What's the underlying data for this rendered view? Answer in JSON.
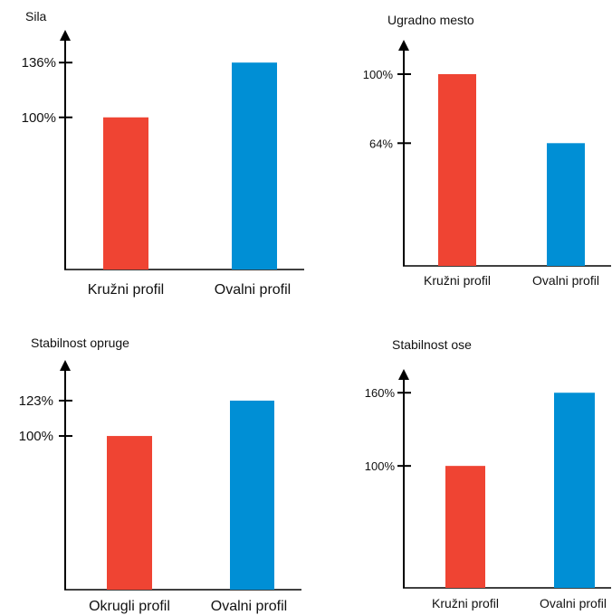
{
  "chart_data": [
    {
      "type": "bar",
      "title": "Sila",
      "categories": [
        "Kružni profil",
        "Ovalni profil"
      ],
      "values": [
        100,
        136
      ],
      "value_ticks": [
        100,
        136
      ],
      "tick_suffix": "%",
      "colors": [
        "#ef4433",
        "#008fd5"
      ],
      "ylim": [
        0,
        170
      ]
    },
    {
      "type": "bar",
      "title": "Ugradno mesto",
      "categories": [
        "Kružni profil",
        "Ovalni profil"
      ],
      "values": [
        100,
        64
      ],
      "value_ticks": [
        100,
        64
      ],
      "tick_suffix": "%",
      "colors": [
        "#ef4433",
        "#008fd5"
      ],
      "ylim": [
        0,
        133
      ]
    },
    {
      "type": "bar",
      "title": "Stabilnost opruge",
      "categories": [
        "Okrugli profil",
        "Ovalni profil"
      ],
      "values": [
        100,
        123
      ],
      "value_ticks": [
        100,
        123
      ],
      "tick_suffix": "%",
      "colors": [
        "#ef4433",
        "#008fd5"
      ],
      "ylim": [
        0,
        163
      ]
    },
    {
      "type": "bar",
      "title": "Stabilnost ose",
      "categories": [
        "Kružni profil",
        "Ovalni profil"
      ],
      "values": [
        100,
        160
      ],
      "value_ticks": [
        100,
        160
      ],
      "tick_suffix": "%",
      "colors": [
        "#ef4433",
        "#008fd5"
      ],
      "ylim": [
        0,
        198
      ]
    }
  ]
}
